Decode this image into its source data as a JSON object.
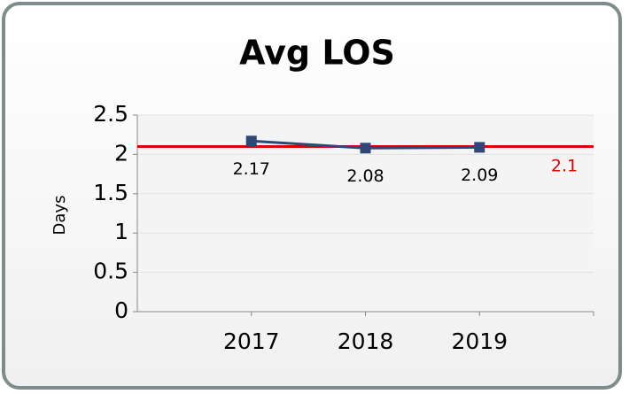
{
  "chart_data": {
    "type": "line",
    "title": "Avg LOS",
    "y_label": "Days",
    "categories": [
      "2017",
      "2018",
      "2019"
    ],
    "series": [
      {
        "name": "Avg LOS",
        "color": "#2f4676",
        "values": [
          2.17,
          2.08,
          2.09
        ]
      }
    ],
    "reference_value": 2.1,
    "reference_color": "#e00000",
    "ylim": [
      0,
      2.5
    ],
    "yticks": [
      0,
      0.5,
      1,
      1.5,
      2,
      2.5
    ],
    "grid": true
  }
}
